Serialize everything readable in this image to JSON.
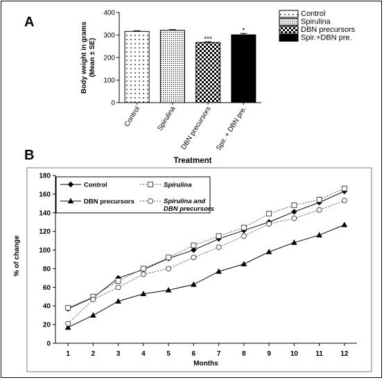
{
  "panel_a_label": "A",
  "panel_b_label": "B",
  "chart_data": [
    {
      "type": "bar",
      "categories": [
        "Control",
        "Spirulina",
        "DBN precursors",
        "Spir. + DBN pre."
      ],
      "values": [
        316,
        321,
        267,
        301
      ],
      "errors": [
        3,
        3,
        3,
        6
      ],
      "significance": [
        "",
        "",
        "***",
        "*"
      ],
      "patterns": [
        "dots",
        "fine-dots",
        "checker",
        "solid"
      ],
      "legend": [
        "Control",
        "Spirulina",
        "DBN precursors",
        "Spir.+DBN pre."
      ],
      "legend_position": "right",
      "ylabel_line1": "Body weight in grams",
      "ylabel_line2": "(Mean ± SE)",
      "xlabel": "Treatment",
      "ylim": [
        0,
        400
      ],
      "yticks": [
        0,
        100,
        200,
        300,
        400
      ],
      "ytick_labels": [
        "0",
        "100",
        "200",
        "300",
        "400"
      ]
    },
    {
      "type": "line",
      "x": [
        1,
        2,
        3,
        4,
        5,
        6,
        7,
        8,
        9,
        10,
        11,
        12
      ],
      "xtick_labels": [
        "1",
        "2",
        "3",
        "4",
        "5",
        "6",
        "7",
        "8",
        "9",
        "10",
        "11",
        "12"
      ],
      "xlabel": "Months",
      "ylabel": "% of change",
      "ylim": [
        0,
        180
      ],
      "yticks": [
        0,
        20,
        40,
        60,
        80,
        100,
        120,
        140,
        160,
        180
      ],
      "ytick_labels": [
        "0",
        "20",
        "40",
        "60",
        "80",
        "100",
        "120",
        "140",
        "160",
        "180"
      ],
      "legend_position": "top-left",
      "series": [
        {
          "name": "Control",
          "marker": "diamond",
          "line": "solid",
          "values": [
            37,
            49,
            70,
            79,
            91,
            100,
            112,
            121,
            130,
            141,
            151,
            163
          ]
        },
        {
          "name": "Spirulina",
          "marker": "square",
          "line": "dotted",
          "values": [
            38,
            50,
            67,
            80,
            92,
            105,
            115,
            124,
            139,
            148,
            154,
            166
          ]
        },
        {
          "name": "DBN precursors",
          "marker": "triangle",
          "line": "solid",
          "values": [
            17,
            30,
            45,
            53,
            57,
            63,
            77,
            85,
            98,
            108,
            116,
            127
          ]
        },
        {
          "name_line1": "Spirulina  and",
          "name_line2": "DBN precursors",
          "marker": "circle",
          "line": "dotted",
          "values": [
            21,
            47,
            60,
            74,
            80,
            92,
            103,
            115,
            128,
            134,
            143,
            153
          ]
        }
      ]
    }
  ]
}
